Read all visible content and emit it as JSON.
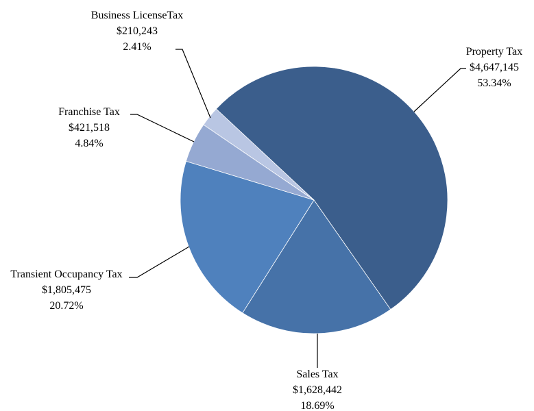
{
  "chart_data": {
    "type": "pie",
    "categories": [
      "Property Tax",
      "Sales Tax",
      "Transient Occupancy Tax",
      "Franchise Tax",
      "Business LicenseTax"
    ],
    "values": [
      4647145,
      1628442,
      1805475,
      421518,
      210243
    ],
    "value_labels": [
      "$4,647,145",
      "$1,628,442",
      "$1,805,475",
      "$421,518",
      "$210,243"
    ],
    "percents": [
      53.34,
      18.69,
      20.72,
      4.84,
      2.41
    ],
    "percent_labels": [
      "53.34%",
      "18.69%",
      "20.72%",
      "4.84%",
      "2.41%"
    ],
    "colors": [
      "#3b5e8c",
      "#4672a8",
      "#4f81bd",
      "#95a9d2",
      "#b9c6e3"
    ]
  }
}
